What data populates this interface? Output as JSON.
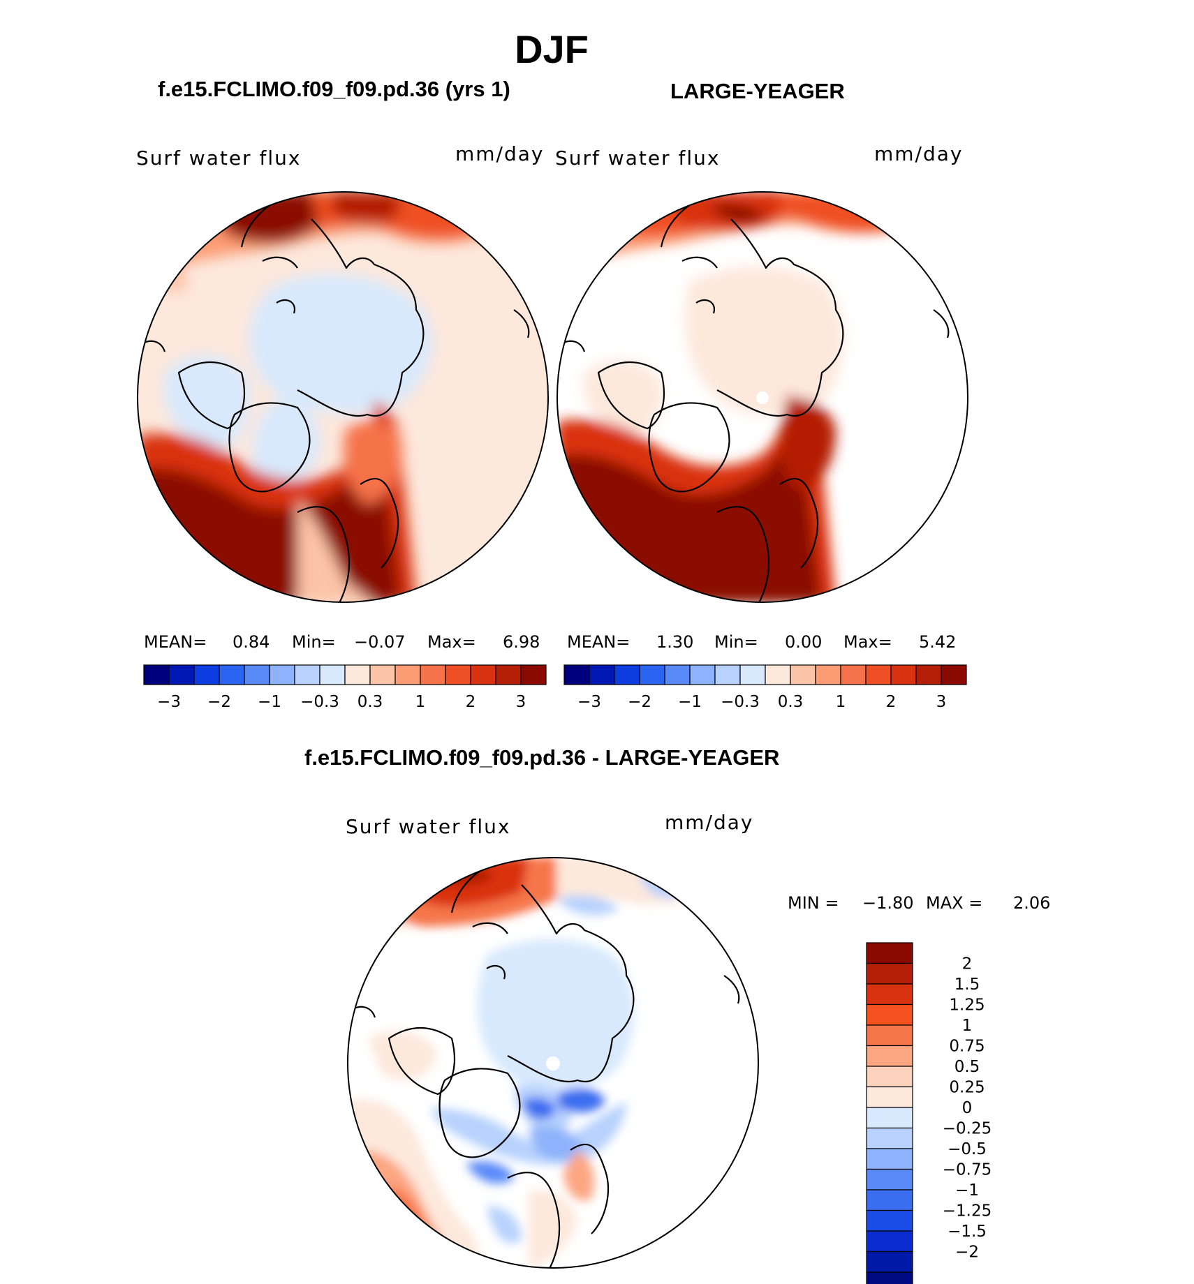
{
  "title": "DJF",
  "panels": {
    "left": {
      "case_title": "f.e15.FCLIMO.f09_f09.pd.36 (yrs 1)",
      "variable": "Surf water flux",
      "units": "mm/day",
      "stats": {
        "mean_label": "MEAN=",
        "mean": "0.84",
        "min_label": "Min=",
        "min": "−0.07",
        "max_label": "Max=",
        "max": "6.98"
      }
    },
    "right": {
      "case_title": "LARGE-YEAGER",
      "variable": "Surf water flux",
      "units": "mm/day",
      "stats": {
        "mean_label": "MEAN=",
        "mean": "1.30",
        "min_label": "Min=",
        "min": "0.00",
        "max_label": "Max=",
        "max": "5.42"
      }
    },
    "diff": {
      "case_title": "f.e15.FCLIMO.f09_f09.pd.36 - LARGE-YEAGER",
      "variable": "Surf water flux",
      "units": "mm/day",
      "stats": {
        "min_label": "MIN =",
        "min": "−1.80",
        "max_label": "MAX =",
        "max": "2.06"
      }
    }
  },
  "colorbar_top": {
    "colors": [
      "#00007f",
      "#0018b4",
      "#0d3ce0",
      "#2c64f2",
      "#5a8af8",
      "#8eb2fb",
      "#b8d2fd",
      "#d8e9fd",
      "#fde8dc",
      "#fcc4a8",
      "#fb9c74",
      "#f6724a",
      "#ef4f24",
      "#d93210",
      "#b41e06",
      "#8a0a00"
    ],
    "tick_labels": [
      "−3",
      "−2",
      "−1",
      "−0.3",
      "0.3",
      "1",
      "2",
      "3"
    ]
  },
  "colorbar_diff": {
    "colors": [
      "#8a0a00",
      "#b41e06",
      "#d93210",
      "#f5521f",
      "#f6764c",
      "#fca682",
      "#fdd2bc",
      "#fde8dc",
      "#d8e9fd",
      "#b8d2fd",
      "#8eb2fb",
      "#5a8af8",
      "#3a6df0",
      "#1a4ce6",
      "#0b2dcf",
      "#001aa8",
      "#000a80"
    ],
    "tick_labels": [
      "2",
      "1.5",
      "1.25",
      "1",
      "0.75",
      "0.5",
      "0.25",
      "0",
      "−0.25",
      "−0.5",
      "−0.75",
      "−1",
      "−1.25",
      "−1.5",
      "−2"
    ]
  }
}
